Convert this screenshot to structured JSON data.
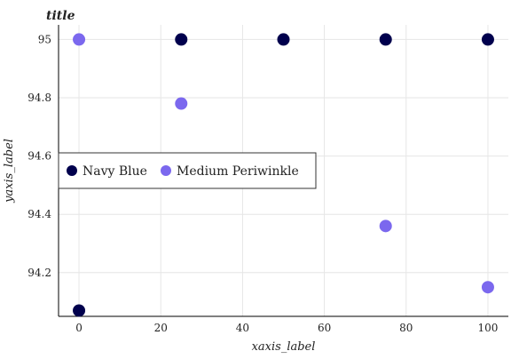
{
  "chart_data": {
    "type": "scatter",
    "title": "title",
    "xlabel": "xaxis_label",
    "ylabel": "yaxis_label",
    "xlim": [
      -5,
      105
    ],
    "ylim": [
      94.05,
      95.05
    ],
    "x_ticks": [
      0,
      20,
      40,
      60,
      80,
      100
    ],
    "x_tick_labels": [
      "0",
      "20",
      "40",
      "60",
      "80",
      "100"
    ],
    "y_ticks": [
      94.2,
      94.4,
      94.6,
      94.8,
      95.0
    ],
    "y_tick_labels": [
      "94.2",
      "94.4",
      "94.6",
      "94.8",
      "95"
    ],
    "grid": true,
    "legend_position": "center-left",
    "series": [
      {
        "name": "Navy Blue",
        "color": "#00004d",
        "x": [
          0,
          25,
          50,
          75,
          100
        ],
        "y": [
          94.07,
          95.0,
          95.0,
          95.0,
          95.0
        ]
      },
      {
        "name": "Medium Periwinkle",
        "color": "#7b68ee",
        "x": [
          0,
          25,
          50,
          75,
          100
        ],
        "y": [
          95.0,
          94.78,
          94.57,
          94.36,
          94.15
        ]
      }
    ]
  }
}
